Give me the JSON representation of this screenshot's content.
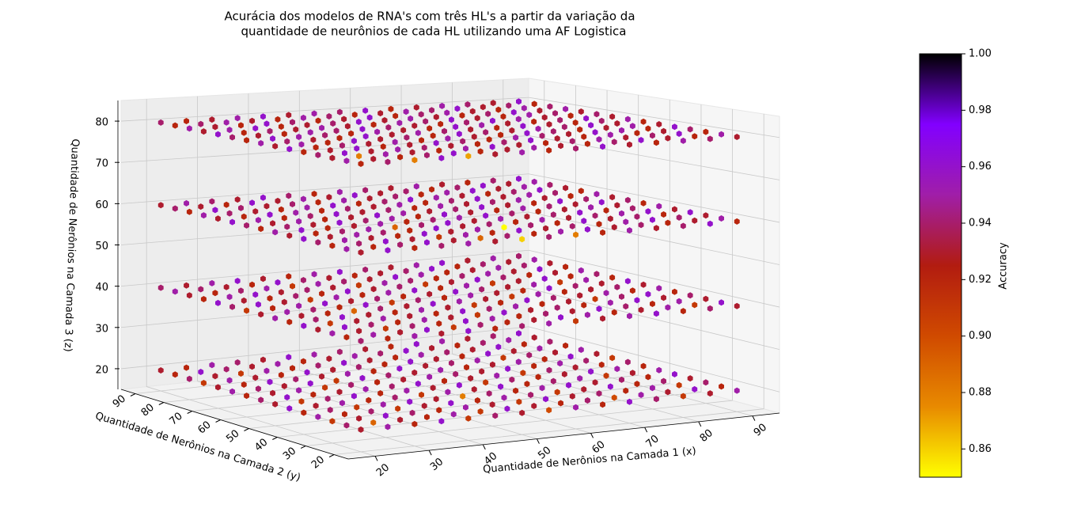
{
  "chart_data": {
    "type": "scatter3d",
    "title": [
      "Acurácia dos modelos de RNA's com três HL's a partir da variação da",
      "quantidade de neurônios de cada HL utilizando uma AF Logistica"
    ],
    "x_label": "Quantidade de Nerônios na Camada 1 (x)",
    "y_label": "Quantidade de Nerônios na Camada 2 (y)",
    "z_label": "Quantidade de Nerônios na Camada 3 (z)",
    "colorbar_label": "Accuracy",
    "x": [
      20,
      25,
      30,
      35,
      40,
      45,
      50,
      55,
      60,
      65,
      70,
      75,
      80,
      85,
      90
    ],
    "y": [
      20,
      25,
      30,
      35,
      40,
      45,
      50,
      55,
      60,
      65,
      70,
      75,
      80,
      85,
      90
    ],
    "z": [
      20,
      40,
      60,
      80
    ],
    "xlim": [
      15,
      95
    ],
    "ylim": [
      15,
      95
    ],
    "zlim": [
      15,
      85
    ],
    "xticks": [
      20,
      30,
      40,
      50,
      60,
      70,
      80,
      90
    ],
    "yticks": [
      20,
      30,
      40,
      50,
      60,
      70,
      80,
      90
    ],
    "zticks": [
      20,
      30,
      40,
      50,
      60,
      70,
      80
    ],
    "clim": [
      0.85,
      1.0
    ],
    "cticks": [
      0.86,
      0.88,
      {
        "value": 0.9,
        "label": "0.90"
      },
      0.92,
      0.94,
      0.96,
      0.98,
      {
        "value": 1.0,
        "label": "1.00"
      }
    ],
    "colormap": [
      "#ffff00",
      "#e88a00",
      "#d04a00",
      "#b21c10",
      "#a01ea8",
      "#8200ff",
      "#000000"
    ],
    "grid": true,
    "values": [
      [
        [
          0.93,
          0.95,
          0.92,
          0.96,
          0.91,
          0.94,
          0.93,
          0.9,
          0.95,
          0.92,
          0.96,
          0.94,
          0.91,
          0.93,
          0.95
        ],
        [
          0.94,
          0.89,
          0.93,
          0.92,
          0.95,
          0.91,
          0.96,
          0.93,
          0.92,
          0.94,
          0.9,
          0.95,
          0.93,
          0.96,
          0.92
        ],
        [
          0.91,
          0.93,
          0.96,
          0.94,
          0.92,
          0.95,
          0.93,
          0.91,
          0.96,
          0.93,
          0.94,
          0.92,
          0.95,
          0.91,
          0.94
        ],
        [
          0.95,
          0.92,
          0.94,
          0.91,
          0.93,
          0.96,
          0.92,
          0.95,
          0.94,
          0.91,
          0.93,
          0.96,
          0.92,
          0.94,
          0.93
        ],
        [
          0.92,
          0.94,
          0.91,
          0.95,
          0.96,
          0.93,
          0.88,
          0.94,
          0.92,
          0.95,
          0.96,
          0.93,
          0.94,
          0.92,
          0.96
        ],
        [
          0.96,
          0.93,
          0.95,
          0.92,
          0.94,
          0.91,
          0.95,
          0.93,
          0.96,
          0.92,
          0.94,
          0.95,
          0.91,
          0.93,
          0.95
        ],
        [
          0.93,
          0.91,
          0.94,
          0.96,
          0.92,
          0.95,
          0.93,
          0.96,
          0.91,
          0.94,
          0.92,
          0.93,
          0.96,
          0.95,
          0.92
        ],
        [
          0.94,
          0.96,
          0.92,
          0.93,
          0.95,
          0.94,
          0.96,
          0.92,
          0.93,
          0.95,
          0.91,
          0.94,
          0.93,
          0.92,
          0.94
        ],
        [
          0.92,
          0.93,
          0.95,
          0.91,
          0.94,
          0.92,
          0.93,
          0.95,
          0.94,
          0.93,
          0.96,
          0.92,
          0.95,
          0.94,
          0.91
        ],
        [
          0.95,
          0.94,
          0.93,
          0.96,
          0.91,
          0.96,
          0.94,
          0.93,
          0.95,
          0.92,
          0.93,
          0.95,
          0.92,
          0.96,
          0.93
        ],
        [
          0.93,
          0.92,
          0.96,
          0.94,
          0.93,
          0.95,
          0.92,
          0.96,
          0.93,
          0.94,
          0.95,
          0.91,
          0.94,
          0.93,
          0.95
        ],
        [
          0.91,
          0.95,
          0.93,
          0.92,
          0.96,
          0.93,
          0.94,
          0.92,
          0.96,
          0.93,
          0.92,
          0.96,
          0.93,
          0.95,
          0.92
        ],
        [
          0.94,
          0.93,
          0.91,
          0.95,
          0.92,
          0.94,
          0.96,
          0.93,
          0.92,
          0.95,
          0.94,
          0.93,
          0.96,
          0.92,
          0.94
        ],
        [
          0.92,
          0.96,
          0.94,
          0.93,
          0.95,
          0.92,
          0.93,
          0.95,
          0.94,
          0.96,
          0.93,
          0.92,
          0.94,
          0.95,
          0.93
        ],
        [
          0.93,
          0.92,
          0.95,
          0.94,
          0.93,
          0.96,
          0.95,
          0.94,
          0.93,
          0.92,
          0.96,
          0.95,
          0.93,
          0.94,
          0.96
        ]
      ],
      [
        [
          0.94,
          0.92,
          0.95,
          0.93,
          0.96,
          0.92,
          0.94,
          0.95,
          0.91,
          0.93,
          0.95,
          0.96,
          0.92,
          0.94,
          0.93
        ],
        [
          0.92,
          0.95,
          0.93,
          0.96,
          0.91,
          0.94,
          0.92,
          0.93,
          0.96,
          0.95,
          0.92,
          0.93,
          0.95,
          0.91,
          0.96
        ],
        [
          0.95,
          0.93,
          0.91,
          0.94,
          0.92,
          0.96,
          0.95,
          0.92,
          0.94,
          0.93,
          0.96,
          0.94,
          0.92,
          0.95,
          0.93
        ],
        [
          0.93,
          0.96,
          0.94,
          0.92,
          0.95,
          0.93,
          0.91,
          0.96,
          0.93,
          0.94,
          0.92,
          0.95,
          0.96,
          0.93,
          0.94
        ],
        [
          0.96,
          0.91,
          0.93,
          0.95,
          0.93,
          0.92,
          0.96,
          0.94,
          0.95,
          0.92,
          0.93,
          0.91,
          0.94,
          0.96,
          0.92
        ],
        [
          0.92,
          0.94,
          0.96,
          0.93,
          0.92,
          0.95,
          0.93,
          0.91,
          0.92,
          0.96,
          0.94,
          0.93,
          0.95,
          0.92,
          0.95
        ],
        [
          0.95,
          0.93,
          0.92,
          0.89,
          0.94,
          0.93,
          0.96,
          0.95,
          0.93,
          0.91,
          0.95,
          0.92,
          0.93,
          0.94,
          0.93
        ],
        [
          0.93,
          0.95,
          0.94,
          0.92,
          0.96,
          0.91,
          0.94,
          0.92,
          0.95,
          0.93,
          0.92,
          0.96,
          0.94,
          0.93,
          0.96
        ],
        [
          0.91,
          0.92,
          0.95,
          0.96,
          0.93,
          0.94,
          0.92,
          0.93,
          0.96,
          0.94,
          0.93,
          0.95,
          0.91,
          0.95,
          0.92
        ],
        [
          0.94,
          0.96,
          0.93,
          0.91,
          0.95,
          0.92,
          0.95,
          0.96,
          0.92,
          0.95,
          0.91,
          0.93,
          0.96,
          0.92,
          0.94
        ],
        [
          0.96,
          0.93,
          0.92,
          0.94,
          0.92,
          0.96,
          0.93,
          0.94,
          0.91,
          0.93,
          0.96,
          0.94,
          0.92,
          0.93,
          0.95
        ],
        [
          0.92,
          0.95,
          0.96,
          0.93,
          0.94,
          0.93,
          0.91,
          0.95,
          0.94,
          0.92,
          0.94,
          0.95,
          0.93,
          0.96,
          0.92
        ],
        [
          0.93,
          0.92,
          0.94,
          0.95,
          0.91,
          0.95,
          0.94,
          0.93,
          0.96,
          0.95,
          0.92,
          0.93,
          0.95,
          0.94,
          0.93
        ],
        [
          0.95,
          0.94,
          0.93,
          0.92,
          0.96,
          0.94,
          0.93,
          0.92,
          0.93,
          0.94,
          0.96,
          0.92,
          0.94,
          0.93,
          0.95
        ],
        [
          0.94,
          0.93,
          0.95,
          0.96,
          0.93,
          0.92,
          0.95,
          0.96,
          0.94,
          0.93,
          0.95,
          0.96,
          0.93,
          0.95,
          0.94
        ]
      ],
      [
        [
          0.93,
          0.96,
          0.92,
          0.94,
          0.95,
          0.93,
          0.86,
          0.94,
          0.88,
          0.92,
          0.95,
          0.93,
          0.94,
          0.96,
          0.92
        ],
        [
          0.95,
          0.92,
          0.94,
          0.96,
          0.93,
          0.89,
          0.94,
          0.92,
          0.95,
          0.96,
          0.93,
          0.94,
          0.92,
          0.93,
          0.95
        ],
        [
          0.92,
          0.94,
          0.96,
          0.93,
          0.91,
          0.95,
          0.92,
          0.96,
          0.93,
          0.94,
          0.92,
          0.95,
          0.96,
          0.94,
          0.93
        ],
        [
          0.94,
          0.95,
          0.93,
          0.92,
          0.96,
          0.93,
          0.95,
          0.85,
          0.94,
          0.92,
          0.96,
          0.93,
          0.94,
          0.92,
          0.96
        ],
        [
          0.96,
          0.93,
          0.95,
          0.94,
          0.92,
          0.96,
          0.93,
          0.94,
          0.92,
          0.95,
          0.93,
          0.94,
          0.95,
          0.96,
          0.93
        ],
        [
          0.93,
          0.92,
          0.94,
          0.95,
          0.89,
          0.94,
          0.96,
          0.93,
          0.95,
          0.93,
          0.94,
          0.96,
          0.92,
          0.94,
          0.95
        ],
        [
          0.95,
          0.96,
          0.92,
          0.93,
          0.95,
          0.92,
          0.94,
          0.95,
          0.96,
          0.94,
          0.92,
          0.93,
          0.95,
          0.93,
          0.92
        ],
        [
          0.92,
          0.94,
          0.93,
          0.96,
          0.94,
          0.95,
          0.92,
          0.96,
          0.93,
          0.92,
          0.95,
          0.94,
          0.93,
          0.96,
          0.94
        ],
        [
          0.94,
          0.93,
          0.95,
          0.92,
          0.93,
          0.96,
          0.95,
          0.93,
          0.94,
          0.96,
          0.93,
          0.92,
          0.96,
          0.94,
          0.93
        ],
        [
          0.96,
          0.95,
          0.92,
          0.94,
          0.96,
          0.93,
          0.94,
          0.92,
          0.95,
          0.93,
          0.94,
          0.95,
          0.93,
          0.92,
          0.95
        ],
        [
          0.93,
          0.92,
          0.96,
          0.95,
          0.92,
          0.94,
          0.93,
          0.95,
          0.92,
          0.94,
          0.96,
          0.93,
          0.95,
          0.94,
          0.92
        ],
        [
          0.95,
          0.94,
          0.93,
          0.92,
          0.95,
          0.96,
          0.92,
          0.94,
          0.96,
          0.95,
          0.93,
          0.92,
          0.94,
          0.96,
          0.93
        ],
        [
          0.92,
          0.96,
          0.94,
          0.93,
          0.94,
          0.92,
          0.95,
          0.93,
          0.94,
          0.92,
          0.95,
          0.96,
          0.93,
          0.95,
          0.94
        ],
        [
          0.94,
          0.93,
          0.92,
          0.96,
          0.93,
          0.95,
          0.93,
          0.96,
          0.93,
          0.94,
          0.92,
          0.94,
          0.96,
          0.93,
          0.95
        ],
        [
          0.93,
          0.95,
          0.94,
          0.93,
          0.96,
          0.94,
          0.92,
          0.95,
          0.94,
          0.93,
          0.95,
          0.93,
          0.92,
          0.94,
          0.96
        ]
      ],
      [
        [
          0.92,
          0.94,
          0.88,
          0.96,
          0.87,
          0.93,
          0.95,
          0.92,
          0.94,
          0.96,
          0.93,
          0.92,
          0.95,
          0.94,
          0.93
        ],
        [
          0.95,
          0.93,
          0.92,
          0.94,
          0.96,
          0.92,
          0.93,
          0.95,
          0.93,
          0.92,
          0.94,
          0.96,
          0.93,
          0.92,
          0.95
        ],
        [
          0.93,
          0.88,
          0.95,
          0.93,
          0.92,
          0.95,
          0.96,
          0.93,
          0.92,
          0.94,
          0.95,
          0.93,
          0.94,
          0.96,
          0.92
        ],
        [
          0.94,
          0.96,
          0.93,
          0.95,
          0.94,
          0.93,
          0.92,
          0.94,
          0.96,
          0.93,
          0.92,
          0.95,
          0.92,
          0.93,
          0.94
        ],
        [
          0.92,
          0.93,
          0.96,
          0.92,
          0.93,
          0.96,
          0.94,
          0.92,
          0.95,
          0.94,
          0.93,
          0.96,
          0.95,
          0.92,
          0.96
        ],
        [
          0.96,
          0.92,
          0.94,
          0.93,
          0.95,
          0.92,
          0.95,
          0.93,
          0.92,
          0.96,
          0.94,
          0.92,
          0.93,
          0.95,
          0.93
        ],
        [
          0.93,
          0.95,
          0.92,
          0.96,
          0.93,
          0.94,
          0.92,
          0.96,
          0.94,
          0.93,
          0.95,
          0.94,
          0.96,
          0.93,
          0.92
        ],
        [
          0.95,
          0.94,
          0.93,
          0.92,
          0.96,
          0.93,
          0.95,
          0.94,
          0.93,
          0.92,
          0.96,
          0.93,
          0.92,
          0.94,
          0.95
        ],
        [
          0.92,
          0.96,
          0.95,
          0.94,
          0.92,
          0.95,
          0.93,
          0.92,
          0.96,
          0.95,
          0.93,
          0.92,
          0.94,
          0.96,
          0.93
        ],
        [
          0.94,
          0.93,
          0.92,
          0.95,
          0.94,
          0.96,
          0.94,
          0.93,
          0.92,
          0.94,
          0.96,
          0.95,
          0.93,
          0.92,
          0.94
        ],
        [
          0.96,
          0.92,
          0.94,
          0.93,
          0.95,
          0.93,
          0.92,
          0.95,
          0.94,
          0.96,
          0.93,
          0.92,
          0.95,
          0.94,
          0.93
        ],
        [
          0.93,
          0.95,
          0.96,
          0.92,
          0.93,
          0.94,
          0.96,
          0.93,
          0.95,
          0.93,
          0.92,
          0.94,
          0.96,
          0.93,
          0.95
        ],
        [
          0.95,
          0.93,
          0.92,
          0.96,
          0.94,
          0.92,
          0.93,
          0.96,
          0.92,
          0.94,
          0.95,
          0.93,
          0.92,
          0.95,
          0.94
        ],
        [
          0.92,
          0.94,
          0.95,
          0.93,
          0.92,
          0.95,
          0.94,
          0.92,
          0.93,
          0.95,
          0.94,
          0.96,
          0.93,
          0.94,
          0.92
        ],
        [
          0.94,
          0.92,
          0.93,
          0.95,
          0.96,
          0.93,
          0.95,
          0.94,
          0.96,
          0.92,
          0.93,
          0.95,
          0.94,
          0.93,
          0.96
        ]
      ]
    ]
  }
}
